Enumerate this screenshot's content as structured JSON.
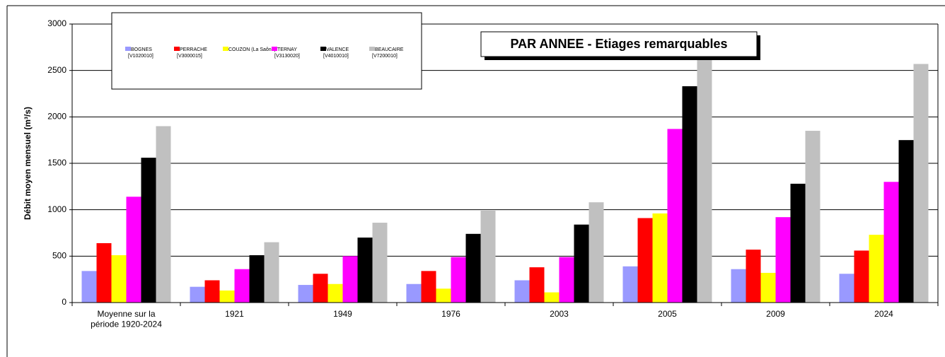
{
  "chart_data": {
    "type": "bar",
    "title": "PAR ANNEE - Etiages remarquables",
    "ylabel": "Débit moyen mensuel (m³/s)",
    "categories": [
      "Moyenne sur  la\npériode 1920-2024",
      "1921",
      "1949",
      "1976",
      "2003",
      "2005",
      "2009",
      "2024"
    ],
    "series": [
      {
        "name": "BOGNES",
        "code": "[V1020010]",
        "color": "#9999ff",
        "values": [
          340,
          170,
          190,
          200,
          240,
          390,
          360,
          310
        ]
      },
      {
        "name": "PERRACHE",
        "code": "[V3000015]",
        "color": "#ff0000",
        "values": [
          640,
          240,
          310,
          340,
          380,
          910,
          570,
          560
        ]
      },
      {
        "name": "COUZON (La Saône)",
        "color": "#ffff00",
        "values": [
          510,
          130,
          200,
          150,
          110,
          960,
          320,
          730
        ]
      },
      {
        "name": "TERNAY",
        "code": "[V3130020]",
        "color": "#ff00ff",
        "values": [
          1140,
          360,
          500,
          490,
          490,
          1870,
          920,
          1300
        ]
      },
      {
        "name": "VALENCE",
        "code": "[V4010010]",
        "color": "#000000",
        "values": [
          1560,
          510,
          700,
          740,
          840,
          2330,
          1280,
          1750
        ]
      },
      {
        "name": "BEAUCAIRE",
        "code": "[V7200010]",
        "color": "#c0c0c0",
        "values": [
          1900,
          650,
          860,
          990,
          1080,
          2650,
          1850,
          2570
        ]
      }
    ],
    "ylim": [
      0,
      3000
    ],
    "yticks": [
      0,
      500,
      1000,
      1500,
      2000,
      2500,
      3000
    ],
    "grid": true
  }
}
